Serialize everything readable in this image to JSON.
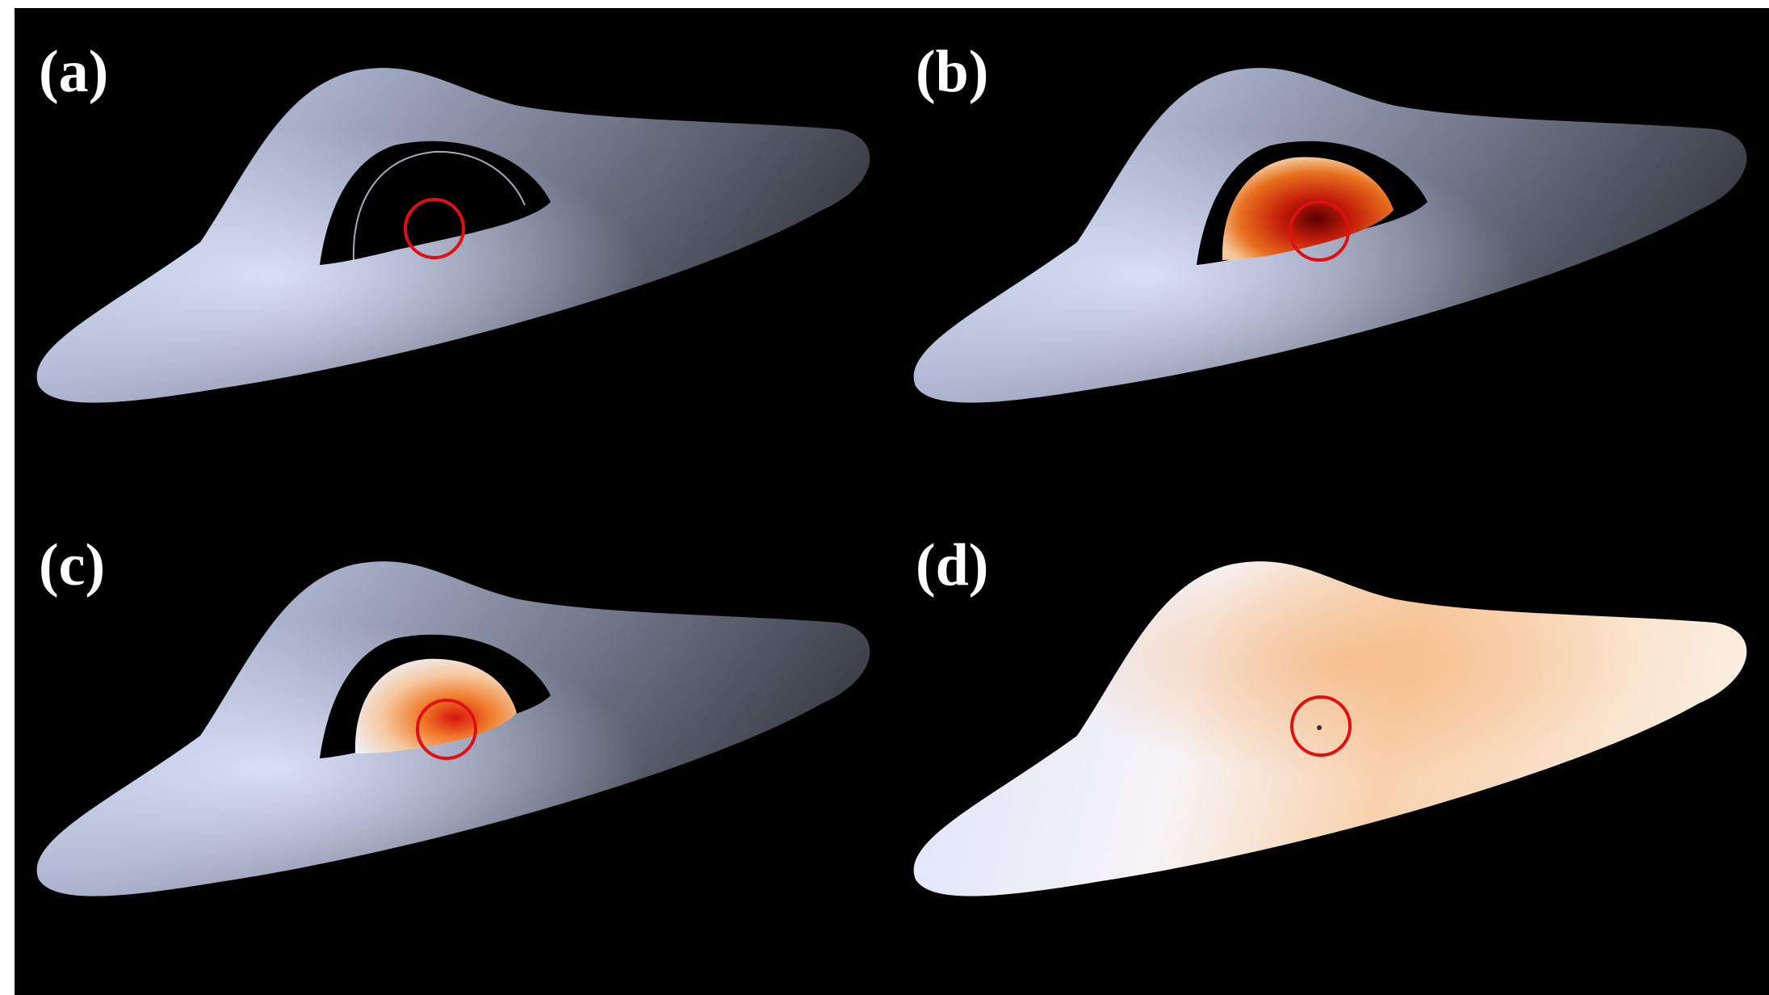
{
  "panels": [
    {
      "label": "(a)",
      "shadow_fill": "black",
      "disk_tint": "gray",
      "marker_color": "#e01010"
    },
    {
      "label": "(b)",
      "shadow_fill": "red-orange",
      "disk_tint": "gray",
      "marker_color": "#e01010"
    },
    {
      "label": "(c)",
      "shadow_fill": "white-orange",
      "disk_tint": "gray",
      "marker_color": "#e01010"
    },
    {
      "label": "(d)",
      "shadow_fill": "none",
      "disk_tint": "white-orange",
      "marker_color": "#e01010"
    }
  ]
}
